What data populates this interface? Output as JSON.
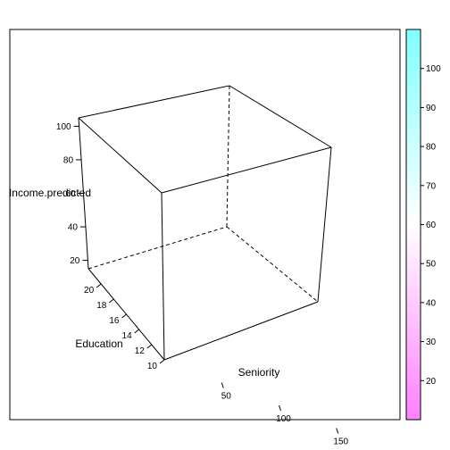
{
  "chart_data": {
    "type": "surface3d",
    "title": "",
    "axes": {
      "x": {
        "label": "Seniority",
        "ticks": [
          50,
          100,
          150
        ],
        "range": [
          0,
          200
        ]
      },
      "y": {
        "label": "Education",
        "ticks": [
          10,
          12,
          14,
          16,
          18,
          20
        ],
        "range": [
          10,
          22
        ]
      },
      "z": {
        "label": "Income.predicted",
        "ticks": [
          20,
          40,
          60,
          80,
          100
        ],
        "range": [
          15,
          105
        ]
      }
    },
    "colorkey": {
      "ticks": [
        20,
        30,
        40,
        50,
        60,
        70,
        80,
        90,
        100
      ],
      "range": [
        10,
        110
      ],
      "colors": {
        "low": "#ff80ff",
        "mid": "#ffffff",
        "high": "#80ffff"
      }
    },
    "surface": []
  }
}
